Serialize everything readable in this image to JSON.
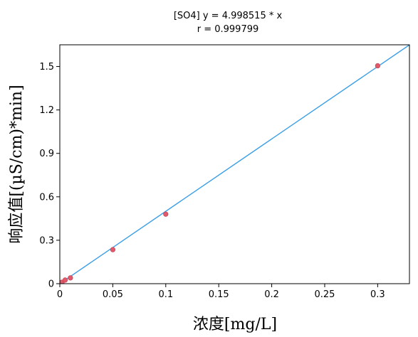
{
  "chart_data": {
    "type": "scatter",
    "title_lines": [
      "[SO4] y = 4.998515 * x",
      "r = 0.999799"
    ],
    "xlabel": "浓度[mg/L]",
    "ylabel": "响应值[(µS/cm)*min]",
    "xlim": [
      0,
      0.33
    ],
    "ylim": [
      0,
      1.65
    ],
    "x_ticks": [
      0,
      0.05,
      0.1,
      0.15,
      0.2,
      0.25,
      0.3
    ],
    "x_tick_labels": [
      "0",
      "0.05",
      "0.1",
      "0.15",
      "0.2",
      "0.25",
      "0.3"
    ],
    "y_ticks": [
      0,
      0.3,
      0.6,
      0.9,
      1.2,
      1.5
    ],
    "y_tick_labels": [
      "0",
      "0.3",
      "0.6",
      "0.9",
      "1.2",
      "1.5"
    ],
    "grid": false,
    "series": [
      {
        "type": "scatter",
        "x": [
          0.001,
          0.002,
          0.005,
          0.01,
          0.05,
          0.1,
          0.3
        ],
        "y": [
          0.005,
          0.01,
          0.025,
          0.04,
          0.235,
          0.48,
          1.505
        ],
        "color": "#e05a6b"
      },
      {
        "type": "line",
        "slope": 4.998515,
        "intercept": 0,
        "color": "#3a9ee6"
      }
    ]
  }
}
